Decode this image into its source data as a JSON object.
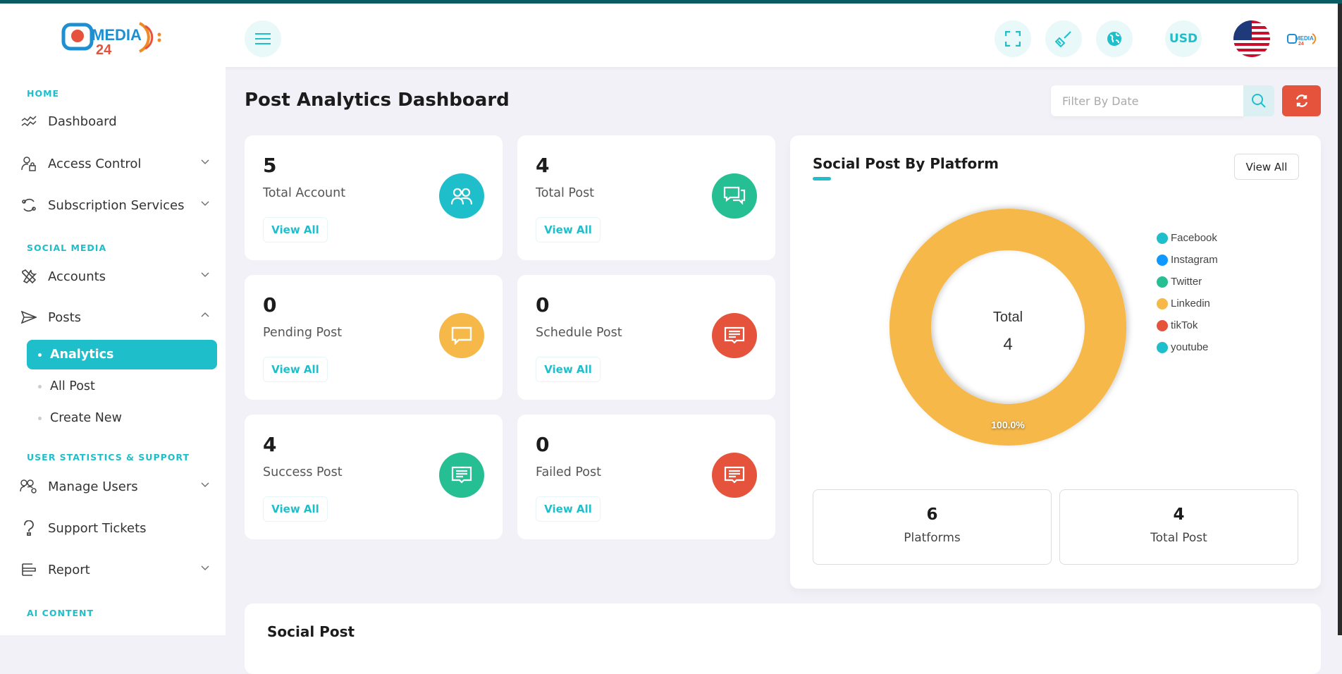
{
  "brand": {
    "logo_text": "MEDIA 24",
    "accent": "#1ebfca"
  },
  "header": {
    "currency": "USD",
    "icons": [
      "fullscreen-icon",
      "broom-icon",
      "globe-icon"
    ],
    "language_flag": "us-flag"
  },
  "sidebar": {
    "sections": [
      {
        "title": "HOME"
      },
      {
        "title": "SOCIAL MEDIA"
      },
      {
        "title": "USER STATISTICS & SUPPORT"
      },
      {
        "title": "AI CONTENT"
      }
    ],
    "items": [
      {
        "label": "Dashboard"
      },
      {
        "label": "Access Control"
      },
      {
        "label": "Subscription Services"
      },
      {
        "label": "Accounts"
      },
      {
        "label": "Posts"
      },
      {
        "label": "Manage Users"
      },
      {
        "label": "Support Tickets"
      },
      {
        "label": "Report"
      }
    ],
    "posts_sub": [
      {
        "label": "Analytics",
        "active": true
      },
      {
        "label": "All Post"
      },
      {
        "label": "Create New"
      }
    ]
  },
  "page": {
    "title": "Post Analytics Dashboard",
    "filter_placeholder": "Filter By Date"
  },
  "cards": [
    {
      "value": "5",
      "label": "Total Account",
      "button": "View All",
      "color": "#1ebfca"
    },
    {
      "value": "4",
      "label": "Total Post",
      "button": "View All",
      "color": "#26bf94"
    },
    {
      "value": "0",
      "label": "Pending Post",
      "button": "View All",
      "color": "#f5b849"
    },
    {
      "value": "0",
      "label": "Schedule Post",
      "button": "View All",
      "color": "#e5533c"
    },
    {
      "value": "4",
      "label": "Success Post",
      "button": "View All",
      "color": "#26bf94"
    },
    {
      "value": "0",
      "label": "Failed Post",
      "button": "View All",
      "color": "#e5533c"
    }
  ],
  "platform_card": {
    "title": "Social Post By Platform",
    "button": "View All",
    "center_label": "Total",
    "center_value": "4",
    "stats": [
      {
        "value": "6",
        "label": "Platforms"
      },
      {
        "value": "4",
        "label": "Total Post"
      }
    ]
  },
  "chart_data": {
    "type": "pie",
    "donut": true,
    "categories": [
      "Facebook",
      "Instagram",
      "Twitter",
      "Linkedin",
      "tikTok",
      "youtube"
    ],
    "values": [
      0,
      0,
      0,
      4,
      0,
      0
    ],
    "colors": [
      "#1ebfca",
      "#0d99ff",
      "#26bf94",
      "#f5b849",
      "#e5533c",
      "#1ebfca"
    ],
    "data_labels": [
      "",
      "",
      "",
      "100.0%",
      "",
      ""
    ],
    "legend": "right"
  },
  "bottom_card": {
    "title": "Social Post"
  }
}
